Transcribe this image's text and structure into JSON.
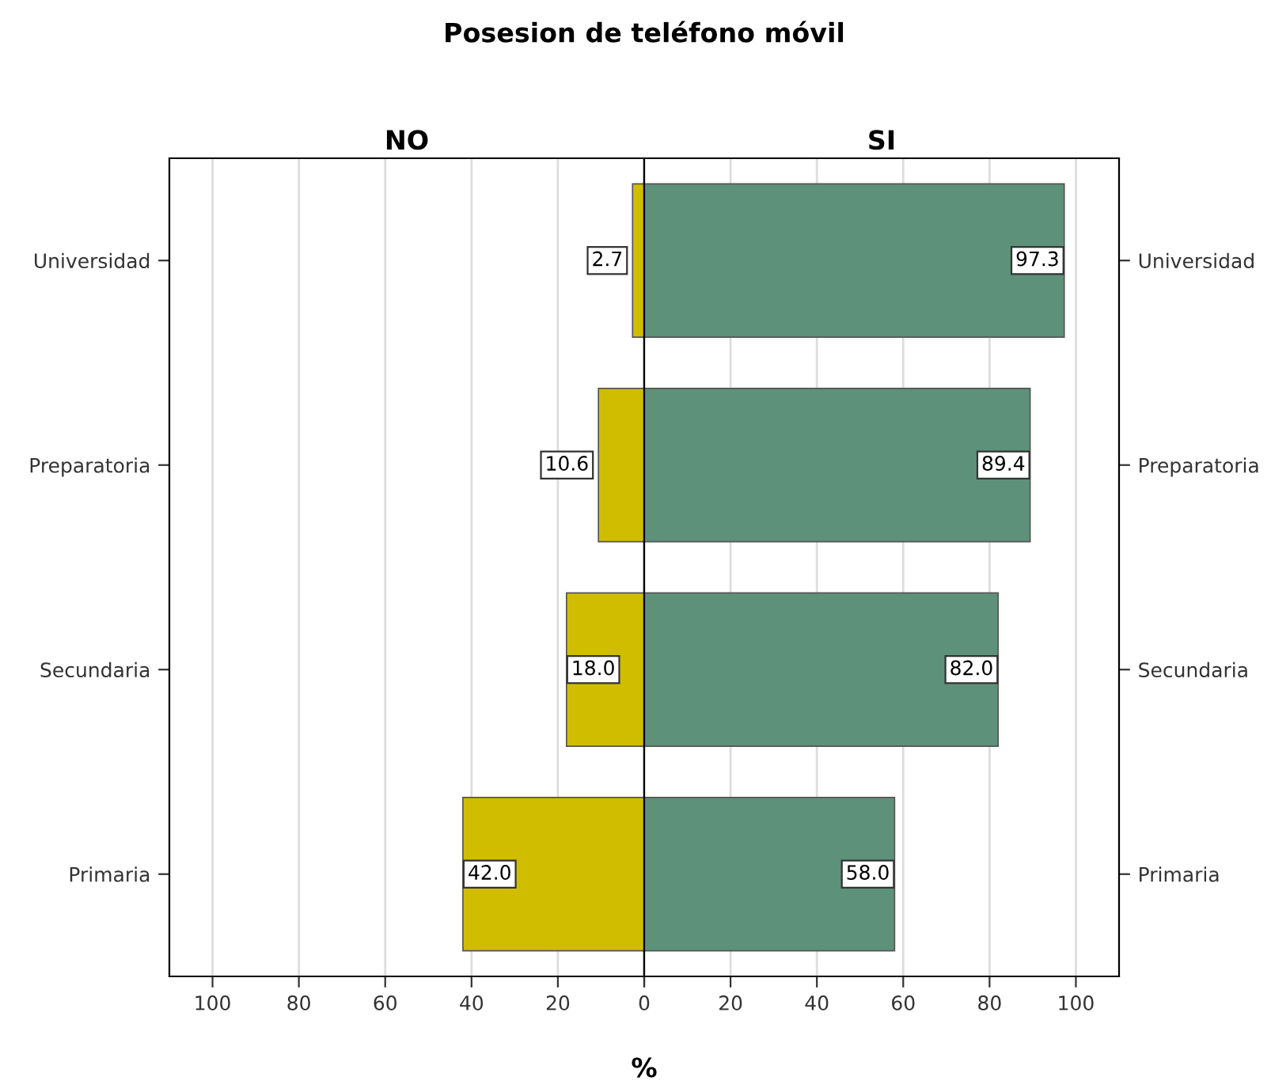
{
  "chart_data": [
    {
      "type": "bar",
      "orientation": "horizontal",
      "title": "NO",
      "annotations": [
        "Posesion de teléfono móvil",
        "%"
      ],
      "categories": [
        "Universidad",
        "Preparatoria",
        "Secundaria",
        "Primaria"
      ],
      "values": [
        2.7,
        10.6,
        18.0,
        42.0
      ],
      "color": "#d1bd00",
      "xlim": [
        110,
        0
      ],
      "xticks": [
        100,
        80,
        60,
        40,
        20,
        0
      ],
      "grid": "x",
      "value_labels": [
        "2.7",
        "10.6",
        "18.0",
        "42.0"
      ]
    },
    {
      "type": "bar",
      "orientation": "horizontal",
      "title": "SI",
      "categories": [
        "Universidad",
        "Preparatoria",
        "Secundaria",
        "Primaria"
      ],
      "values": [
        97.3,
        89.4,
        82.0,
        58.0
      ],
      "color": "#5e9179",
      "xlim": [
        0,
        110
      ],
      "xticks": [
        {
          "value": 0,
          "label": null
        },
        20,
        40,
        60,
        80,
        100
      ],
      "grid": "x",
      "value_labels": [
        "97.3",
        "89.4",
        "82.0",
        "58.0"
      ]
    }
  ]
}
